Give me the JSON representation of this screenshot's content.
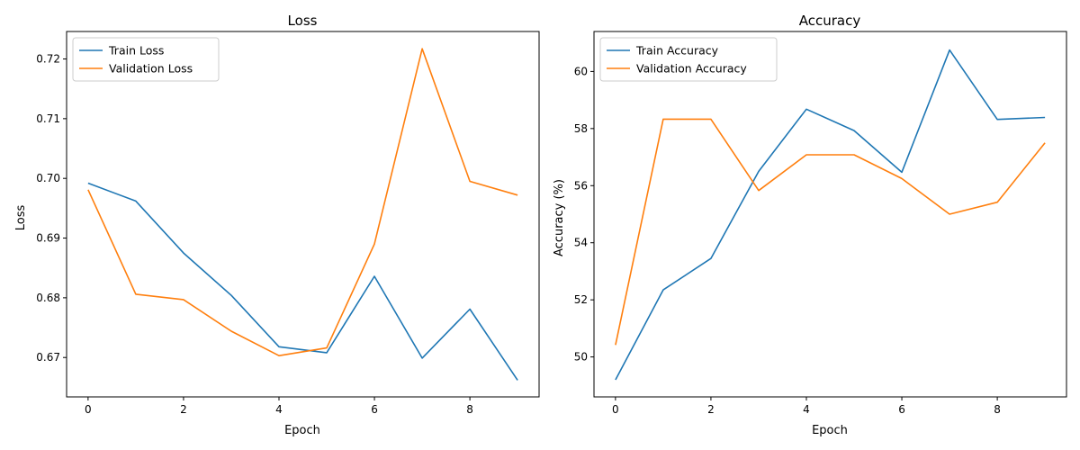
{
  "chart_data": [
    {
      "type": "line",
      "title": "Loss",
      "xlabel": "Epoch",
      "ylabel": "Loss",
      "x": [
        0,
        1,
        2,
        3,
        4,
        5,
        6,
        7,
        8,
        9
      ],
      "xlim": [
        -0.45,
        9.45
      ],
      "ylim": [
        0.6634,
        0.7246
      ],
      "xticks": [
        0,
        2,
        4,
        6,
        8
      ],
      "yticks": [
        0.67,
        0.68,
        0.69,
        0.7,
        0.71,
        0.72
      ],
      "ytick_labels": [
        "0.67",
        "0.68",
        "0.69",
        "0.70",
        "0.71",
        "0.72"
      ],
      "grid": false,
      "legend_position": "top-left",
      "series": [
        {
          "name": "Train Loss",
          "color": "#1f77b4",
          "values": [
            0.6992,
            0.6962,
            0.6875,
            0.6804,
            0.6718,
            0.6708,
            0.6836,
            0.6699,
            0.6781,
            0.6662
          ]
        },
        {
          "name": "Validation Loss",
          "color": "#ff7f0e",
          "values": [
            0.6981,
            0.6806,
            0.6797,
            0.6744,
            0.6703,
            0.6716,
            0.689,
            0.7217,
            0.6995,
            0.6972
          ]
        }
      ]
    },
    {
      "type": "line",
      "title": "Accuracy",
      "xlabel": "Epoch",
      "ylabel": "Accuracy (%)",
      "x": [
        0,
        1,
        2,
        3,
        4,
        5,
        6,
        7,
        8,
        9
      ],
      "xlim": [
        -0.45,
        9.45
      ],
      "ylim": [
        48.6,
        61.4
      ],
      "xticks": [
        0,
        2,
        4,
        6,
        8
      ],
      "yticks": [
        50,
        52,
        54,
        56,
        58,
        60
      ],
      "ytick_labels": [
        "50",
        "52",
        "54",
        "56",
        "58",
        "60"
      ],
      "grid": false,
      "legend_position": "top-left",
      "series": [
        {
          "name": "Train Accuracy",
          "color": "#1f77b4",
          "values": [
            49.2,
            52.35,
            53.45,
            56.5,
            58.68,
            57.93,
            56.47,
            60.75,
            58.32,
            58.39
          ]
        },
        {
          "name": "Validation Accuracy",
          "color": "#ff7f0e",
          "values": [
            50.42,
            58.33,
            58.33,
            55.83,
            57.08,
            57.08,
            56.25,
            55.0,
            55.42,
            57.5
          ]
        }
      ]
    }
  ]
}
